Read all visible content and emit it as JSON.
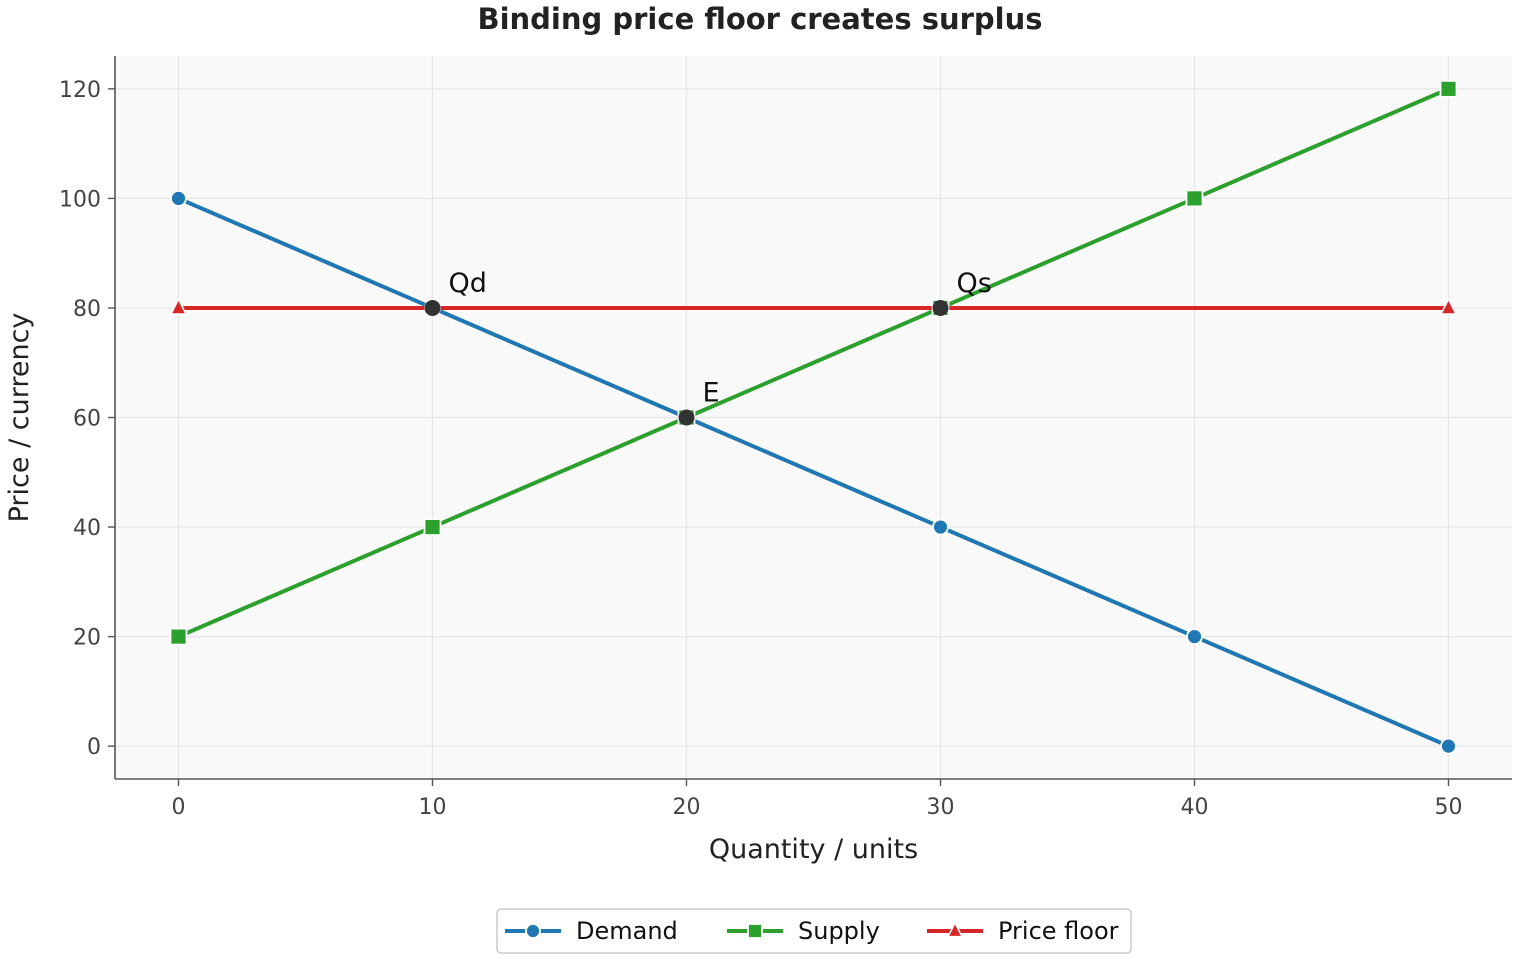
{
  "chart_data": {
    "type": "line",
    "title": "Binding price floor creates surplus",
    "xlabel": "Quantity / units",
    "ylabel": "Price / currency",
    "xlim": [
      -2.5,
      52.5
    ],
    "ylim": [
      -6,
      126
    ],
    "x_ticks": [
      0,
      10,
      20,
      30,
      40,
      50
    ],
    "y_ticks": [
      0,
      20,
      40,
      60,
      80,
      100,
      120
    ],
    "grid": true,
    "legend_position": "bottom-center",
    "series": [
      {
        "name": "Demand",
        "color": "#1f77b4",
        "marker": "circle",
        "x": [
          0,
          10,
          20,
          30,
          40,
          50
        ],
        "y": [
          100,
          80,
          60,
          40,
          20,
          0
        ]
      },
      {
        "name": "Supply",
        "color": "#2ca02c",
        "marker": "square",
        "x": [
          0,
          10,
          20,
          30,
          40,
          50
        ],
        "y": [
          20,
          40,
          60,
          80,
          100,
          120
        ]
      },
      {
        "name": "Price floor",
        "color": "#d62728",
        "marker": "triangle",
        "x": [
          0,
          50
        ],
        "y": [
          80,
          80
        ]
      }
    ],
    "annotations": [
      {
        "label": "Qd",
        "x": 10,
        "y": 80
      },
      {
        "label": "Qs",
        "x": 30,
        "y": 80
      },
      {
        "label": "E",
        "x": 20,
        "y": 60
      }
    ],
    "colors": {
      "background": "#f9f9f9",
      "grid": "#e6e6e6",
      "axis": "#555555",
      "highlight_point": "#333333"
    }
  }
}
